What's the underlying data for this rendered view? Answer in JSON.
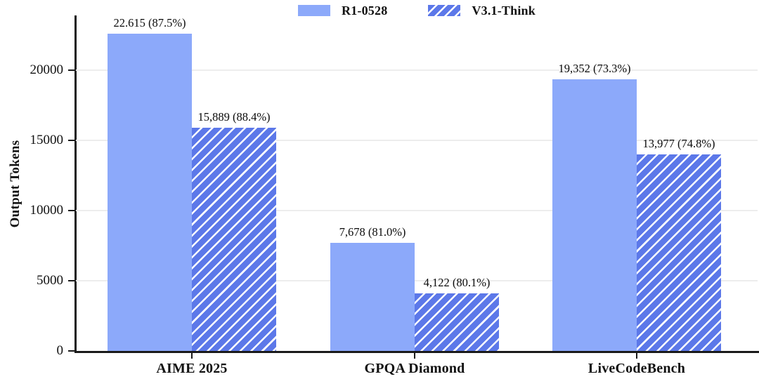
{
  "colors": {
    "solid_bar": "#8CA9FA",
    "hatched_bar_base": "#5C78E9",
    "hatch_stripe": "#FFFFFF",
    "grid": "#EDEDED",
    "axis": "#1A1A1A",
    "text": "#111111"
  },
  "chart_data": {
    "type": "bar",
    "title": "",
    "xlabel": "",
    "ylabel": "Output Tokens",
    "categories": [
      "AIME 2025",
      "GPQA Diamond",
      "LiveCodeBench"
    ],
    "series": [
      {
        "name": "R1-0528",
        "style": "solid",
        "values": [
          22615,
          7678,
          19352
        ],
        "bar_labels": [
          "22.615 (87.5%)",
          "7,678 (81.0%)",
          "19,352 (73.3%)"
        ]
      },
      {
        "name": "V3.1-Think",
        "style": "hatched",
        "values": [
          15889,
          4122,
          13977
        ],
        "bar_labels": [
          "15,889 (88.4%)",
          "4,122 (80.1%)",
          "13,977 (74.8%)"
        ]
      }
    ],
    "yticks": [
      0,
      5000,
      10000,
      15000,
      20000
    ],
    "ytick_labels": [
      "0",
      "5000",
      "10000",
      "15000",
      "20000"
    ],
    "ylim": [
      0,
      23900
    ],
    "grid": true,
    "legend_position": "top-center"
  }
}
